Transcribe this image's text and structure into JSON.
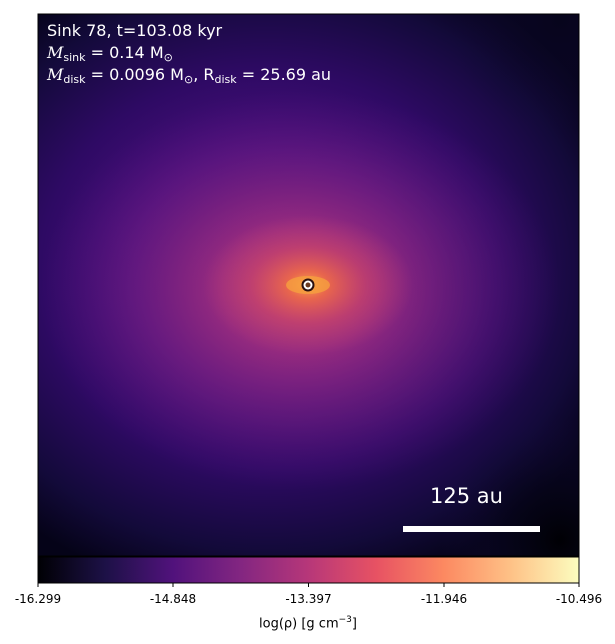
{
  "annotation": {
    "line1": "Sink 78, t=103.08 kyr",
    "line2_prefix": "M",
    "line2_sub": "sink",
    "line2_rest": " = 0.14 M",
    "line2_sun": "⊙",
    "line3_prefix": "M",
    "line3_sub": "disk",
    "line3_mid": " = 0.0096 M",
    "line3_sun": "⊙",
    "line3_r": ", R",
    "line3_rsub": "disk",
    "line3_rest": " = 25.69 au"
  },
  "scalebar": {
    "label": "125 au"
  },
  "colorbar": {
    "ticks": [
      "-16.299",
      "-14.848",
      "-13.397",
      "-11.946",
      "-10.496"
    ],
    "label_prefix": "log(ρ) [g cm",
    "label_sup": "−3",
    "label_suffix": "]",
    "colormap": "plasma",
    "stops": [
      "#000004",
      "#1d1147",
      "#51127c",
      "#832681",
      "#b73779",
      "#e75263",
      "#fc8961",
      "#fec287",
      "#fcfdbf"
    ]
  },
  "sink": {
    "marker": "white ring sink-particle marker at image center"
  },
  "colors": {
    "text": "#ffffff",
    "axis": "#000000"
  }
}
